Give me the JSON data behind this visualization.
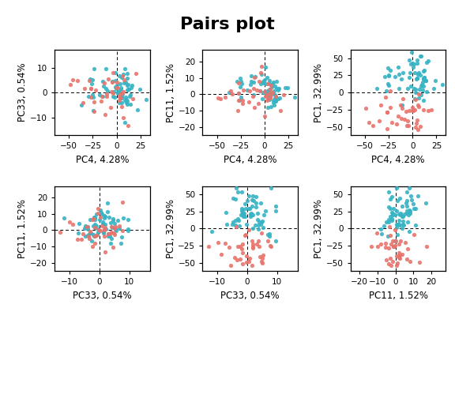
{
  "title": "Pairs plot",
  "title_fontsize": 16,
  "title_fontweight": "bold",
  "color_group1": "#E8736C",
  "color_group2": "#36B3C4",
  "seed": 42,
  "n_group1": 40,
  "n_group2": 65,
  "subplots": [
    {
      "row": 0,
      "col": 0,
      "xlabel": "PC4, 4.28%",
      "ylabel": "PC33, 0.54%",
      "xlim": [
        -65,
        35
      ],
      "ylim": [
        -17,
        17
      ],
      "xticks": [
        -50,
        -25,
        0,
        25
      ],
      "yticks": [
        -10,
        0,
        10
      ],
      "xvar": "PC4",
      "yvar": "PC33"
    },
    {
      "row": 0,
      "col": 1,
      "xlabel": "PC4, 4.28%",
      "ylabel": "PC11, 1.52%",
      "xlim": [
        -65,
        35
      ],
      "ylim": [
        -25,
        27
      ],
      "xticks": [
        -50,
        -25,
        0,
        25
      ],
      "yticks": [
        -20,
        -10,
        0,
        10,
        20
      ],
      "xvar": "PC4",
      "yvar": "PC11"
    },
    {
      "row": 0,
      "col": 2,
      "xlabel": "PC4, 4.28%",
      "ylabel": "PC1, 32.99%",
      "xlim": [
        -65,
        35
      ],
      "ylim": [
        -62,
        62
      ],
      "xticks": [
        -50,
        -25,
        0,
        25
      ],
      "yticks": [
        -50,
        -25,
        0,
        25,
        50
      ],
      "xvar": "PC4",
      "yvar": "PC1"
    },
    {
      "row": 1,
      "col": 0,
      "xlabel": "PC33, 0.54%",
      "ylabel": "PC11, 1.52%",
      "xlim": [
        -15,
        17
      ],
      "ylim": [
        -25,
        27
      ],
      "xticks": [
        -10,
        0,
        10
      ],
      "yticks": [
        -20,
        -10,
        0,
        10,
        20
      ],
      "xvar": "PC33",
      "yvar": "PC11"
    },
    {
      "row": 1,
      "col": 1,
      "xlabel": "PC33, 0.54%",
      "ylabel": "PC1, 32.99%",
      "xlim": [
        -15,
        17
      ],
      "ylim": [
        -62,
        62
      ],
      "xticks": [
        -10,
        0,
        10
      ],
      "yticks": [
        -50,
        -25,
        0,
        25,
        50
      ],
      "xvar": "PC33",
      "yvar": "PC1"
    },
    {
      "row": 1,
      "col": 2,
      "xlabel": "PC11, 1.52%",
      "ylabel": "PC1, 32.99%",
      "xlim": [
        -25,
        28
      ],
      "ylim": [
        -62,
        62
      ],
      "xticks": [
        -20,
        -10,
        0,
        10,
        20
      ],
      "yticks": [
        -50,
        -25,
        0,
        25,
        50
      ],
      "xvar": "PC11",
      "yvar": "PC1"
    }
  ]
}
